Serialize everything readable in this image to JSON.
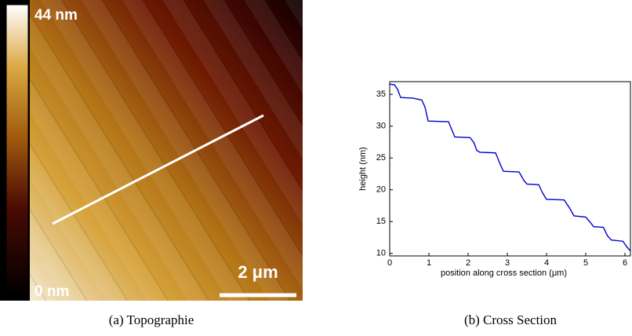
{
  "figure_a": {
    "colorbar_top": "44 nm",
    "colorbar_bottom": "0 nm",
    "scale_bar": "2 μm",
    "caption": "(a) Topographie"
  },
  "chart_data": {
    "type": "line",
    "x": [
      0,
      0.12,
      0.2,
      0.28,
      0.6,
      0.82,
      0.9,
      0.98,
      1.5,
      1.58,
      1.66,
      2.05,
      2.15,
      2.22,
      2.3,
      2.7,
      2.82,
      2.9,
      3.3,
      3.42,
      3.5,
      3.8,
      3.9,
      4.0,
      4.45,
      4.6,
      4.7,
      5.0,
      5.1,
      5.2,
      5.45,
      5.55,
      5.65,
      5.95,
      6.05,
      6.14
    ],
    "series": [
      {
        "color": "#0000d0",
        "values": [
          36.6,
          36.5,
          35.8,
          34.5,
          34.4,
          34.1,
          33.0,
          30.8,
          30.7,
          29.5,
          28.3,
          28.2,
          27.4,
          26.2,
          25.9,
          25.8,
          24.0,
          22.9,
          22.8,
          21.5,
          20.9,
          20.8,
          19.5,
          18.5,
          18.4,
          17.0,
          15.9,
          15.7,
          15.0,
          14.2,
          14.1,
          12.8,
          12.1,
          11.9,
          11.0,
          10.4
        ]
      }
    ],
    "xlabel": "position along cross section (μm)",
    "ylabel": "height (nm)",
    "xlim": [
      0,
      6.14
    ],
    "ylim": [
      9.6,
      37
    ],
    "xticks": [
      0,
      1,
      2,
      3,
      4,
      5,
      6
    ],
    "yticks": [
      10,
      15,
      20,
      25,
      30,
      35
    ],
    "caption": "(b) Cross Section"
  }
}
